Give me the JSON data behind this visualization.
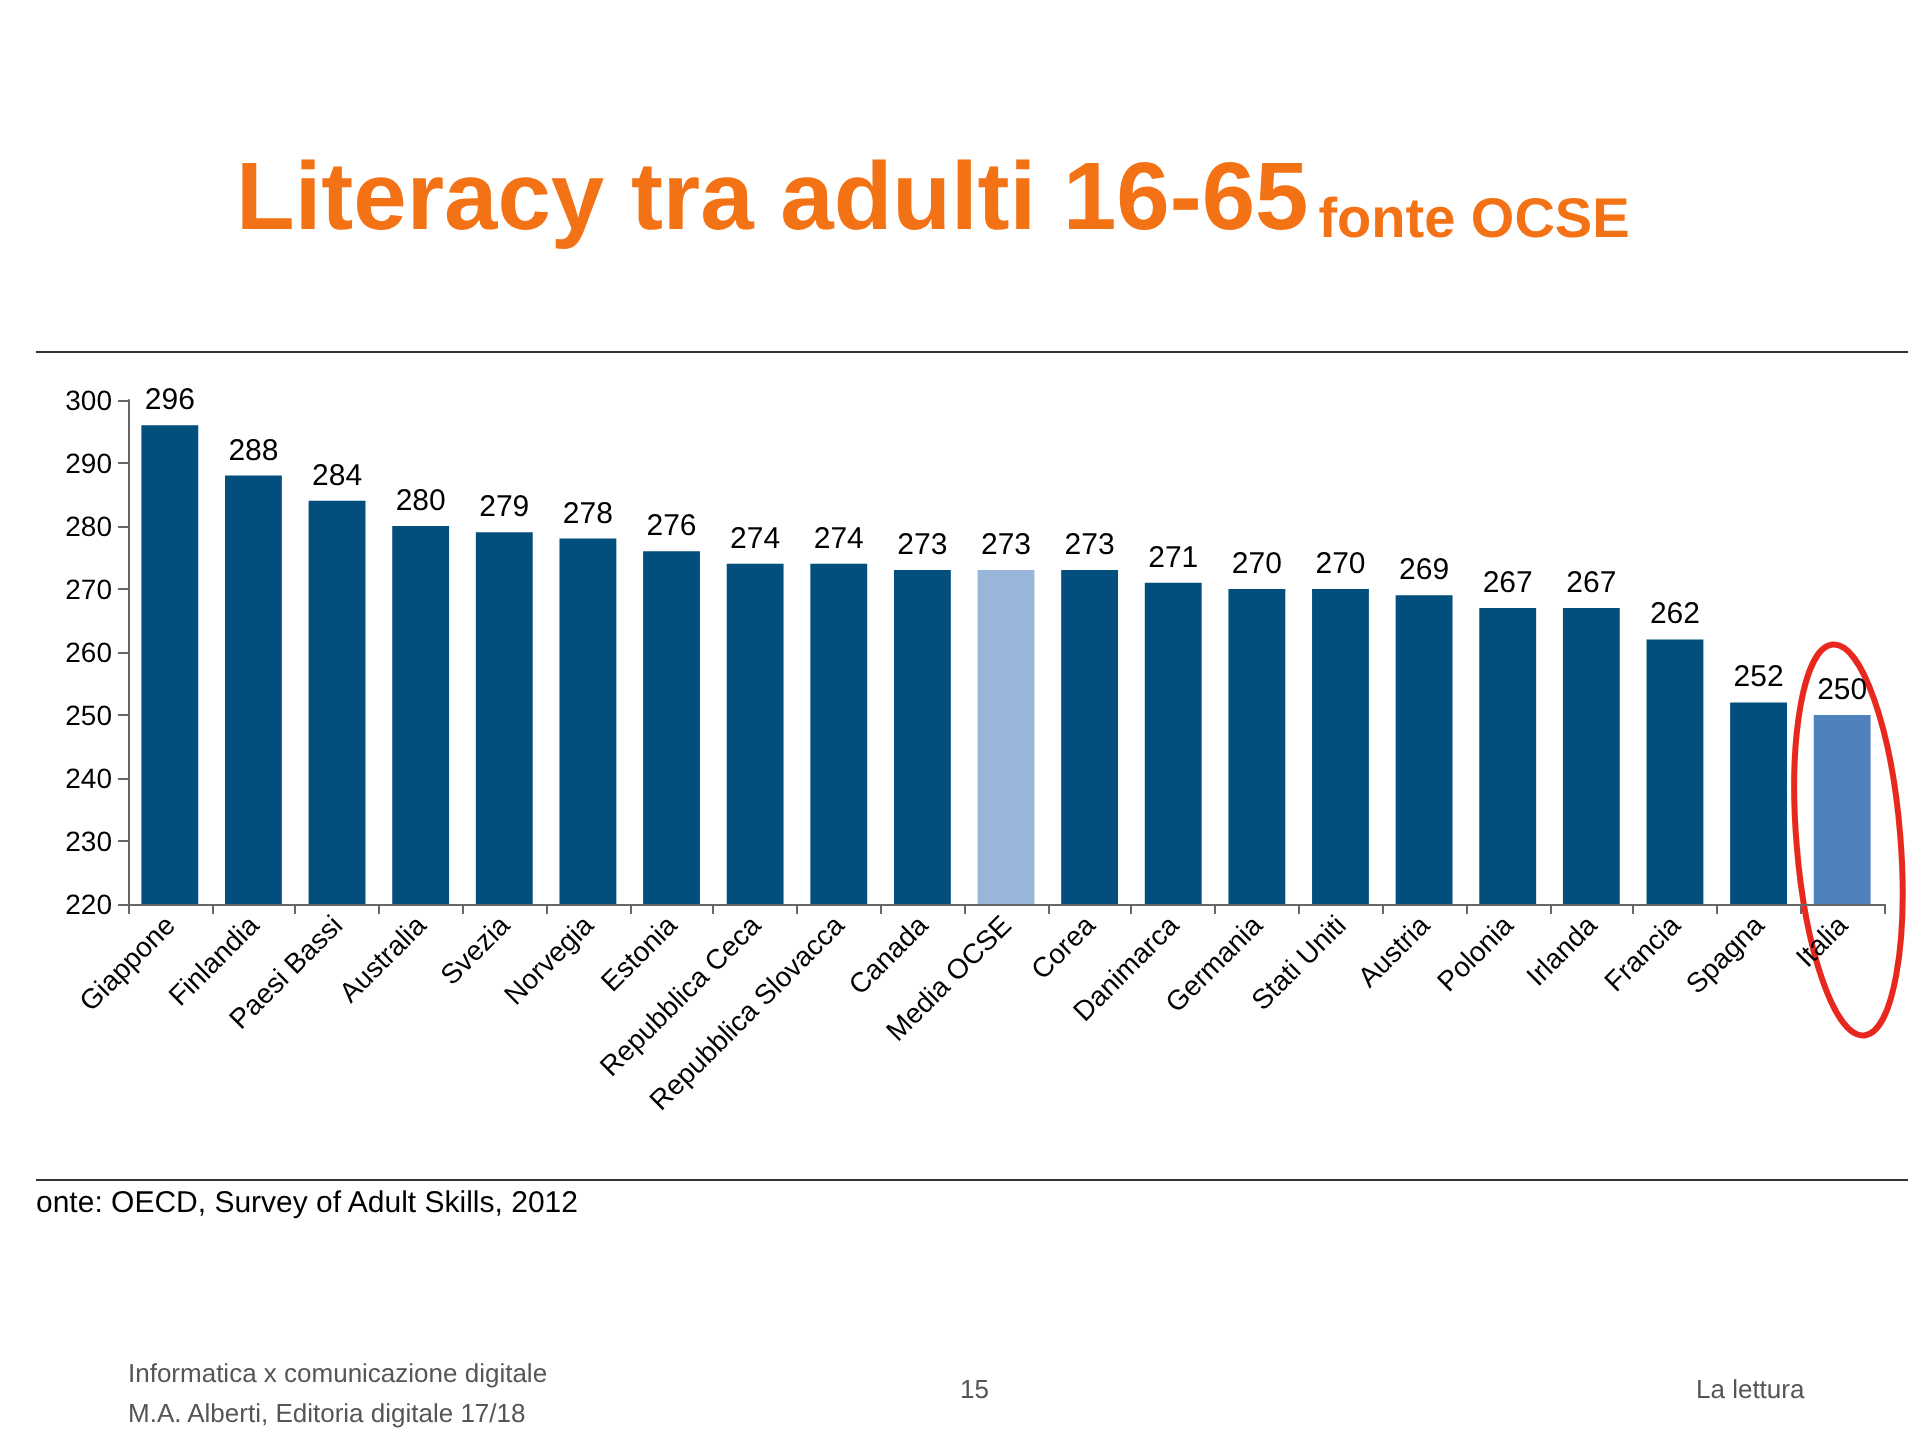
{
  "chart_data": {
    "type": "bar",
    "title": "Literacy tra adulti 16-65",
    "subtitle": "fonte OCSE",
    "categories": [
      "Giappone",
      "Finlandia",
      "Paesi Bassi",
      "Australia",
      "Svezia",
      "Norvegia",
      "Estonia",
      "Repubblica Ceca",
      "Repubblica Slovacca",
      "Canada",
      "Media OCSE",
      "Corea",
      "Danimarca",
      "Germania",
      "Stati Uniti",
      "Austria",
      "Polonia",
      "Irlanda",
      "Francia",
      "Spagna",
      "Italia"
    ],
    "values": [
      296,
      288,
      284,
      280,
      279,
      278,
      276,
      274,
      274,
      273,
      273,
      273,
      271,
      270,
      270,
      269,
      267,
      267,
      262,
      252,
      250
    ],
    "colors": [
      "#024f7d",
      "#024f7d",
      "#024f7d",
      "#024f7d",
      "#024f7d",
      "#024f7d",
      "#024f7d",
      "#024f7d",
      "#024f7d",
      "#024f7d",
      "#97b6d9",
      "#024f7d",
      "#024f7d",
      "#024f7d",
      "#024f7d",
      "#024f7d",
      "#024f7d",
      "#024f7d",
      "#024f7d",
      "#024f7d",
      "#4f81bd"
    ],
    "ylim": [
      220,
      300
    ],
    "yticks": [
      220,
      230,
      240,
      250,
      260,
      270,
      280,
      290,
      300
    ],
    "grid": false,
    "data_labels": true,
    "annotations": [
      "onte: OECD, Survey of Adult Skills, 2012",
      "Informatica x comunicazione digitale",
      "M.A. Alberti, Editoria digitale 17/18",
      "15",
      "La lettura"
    ]
  }
}
